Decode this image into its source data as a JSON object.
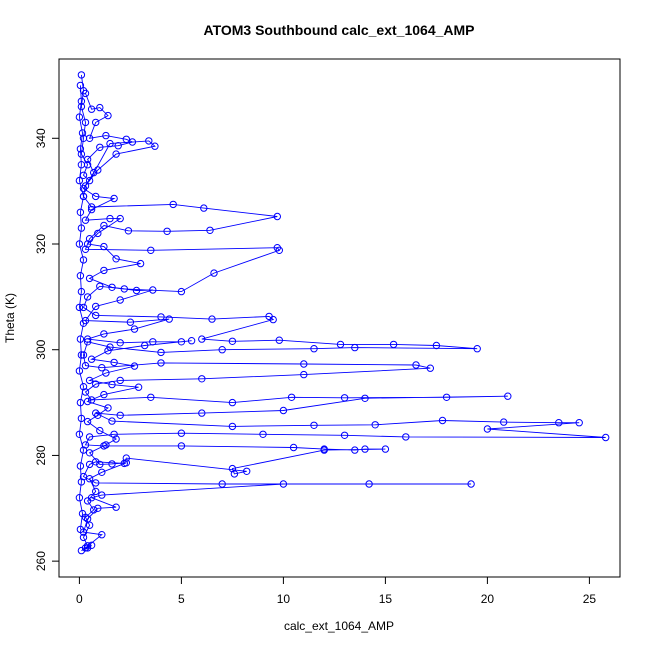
{
  "chart_data": {
    "type": "line",
    "title": "ATOM3 Southbound calc_ext_1064_AMP",
    "xlabel": "calc_ext_1064_AMP",
    "ylabel": "Theta (K)",
    "xlim": [
      -1,
      26.5
    ],
    "ylim": [
      257,
      355
    ],
    "x_ticks": [
      0,
      5,
      10,
      15,
      20,
      25
    ],
    "y_ticks": [
      260,
      280,
      300,
      320,
      340
    ],
    "x_tick_labels": [
      "0",
      "5",
      "10",
      "15",
      "20",
      "25"
    ],
    "y_tick_labels": [
      "260",
      "280",
      "300",
      "320",
      "340"
    ],
    "grid": false,
    "series_color": "#0000ff",
    "marker": "open-circle",
    "series": [
      {
        "points": [
          [
            0.1,
            352
          ],
          [
            0.2,
            349
          ],
          [
            0.1,
            346
          ],
          [
            0.3,
            343
          ],
          [
            0.2,
            340
          ],
          [
            0.1,
            337
          ],
          [
            0.4,
            335
          ],
          [
            0.2,
            333
          ],
          [
            0.5,
            332
          ],
          [
            1.5,
            339
          ],
          [
            3.4,
            339.5
          ],
          [
            3.7,
            338.5
          ],
          [
            1.8,
            337
          ],
          [
            0.9,
            334
          ],
          [
            0.3,
            331
          ],
          [
            0.2,
            329
          ],
          [
            0.6,
            327
          ],
          [
            4.6,
            327.5
          ],
          [
            6.1,
            326.8
          ],
          [
            9.7,
            325.2
          ],
          [
            6.4,
            322.6
          ],
          [
            4.3,
            322.4
          ],
          [
            2.4,
            322.5
          ],
          [
            1.2,
            323.5
          ],
          [
            0.5,
            321
          ],
          [
            0.3,
            319
          ],
          [
            3.5,
            318.8
          ],
          [
            9.7,
            319.3
          ],
          [
            9.8,
            318.8
          ],
          [
            6.6,
            314.5
          ],
          [
            5.0,
            311.0
          ],
          [
            2.2,
            311.5
          ],
          [
            1.0,
            312
          ],
          [
            0.4,
            310
          ],
          [
            0.2,
            308
          ],
          [
            0.8,
            306.5
          ],
          [
            4.0,
            306.2
          ],
          [
            6.5,
            305.8
          ],
          [
            9.3,
            306.3
          ],
          [
            9.5,
            305.7
          ],
          [
            6.0,
            302
          ],
          [
            7.5,
            301.6
          ],
          [
            9.8,
            301.8
          ],
          [
            12.8,
            301.0
          ],
          [
            15.4,
            301.0
          ],
          [
            17.5,
            300.8
          ],
          [
            19.5,
            300.2
          ],
          [
            13.5,
            300.4
          ],
          [
            11.5,
            300.2
          ],
          [
            7.0,
            300.0
          ],
          [
            4.0,
            299.5
          ],
          [
            1.5,
            300.5
          ],
          [
            0.4,
            301.5
          ],
          [
            0.2,
            299
          ],
          [
            0.3,
            297
          ],
          [
            1.1,
            296.6
          ],
          [
            4.0,
            297.5
          ],
          [
            11.0,
            297.3
          ],
          [
            16.5,
            297.1
          ],
          [
            17.2,
            296.5
          ],
          [
            11.0,
            295.3
          ],
          [
            6.0,
            294.5
          ],
          [
            2.0,
            294.2
          ],
          [
            0.8,
            293.5
          ],
          [
            0.3,
            292
          ],
          [
            0.6,
            290.5
          ],
          [
            3.5,
            291.0
          ],
          [
            7.5,
            290.0
          ],
          [
            10.4,
            291.0
          ],
          [
            13.0,
            290.9
          ],
          [
            18.0,
            291.0
          ],
          [
            21.0,
            291.2
          ],
          [
            14.0,
            290.8
          ],
          [
            10.0,
            288.5
          ],
          [
            6.0,
            288.0
          ],
          [
            2.0,
            287.6
          ],
          [
            0.8,
            288
          ],
          [
            1.6,
            286.5
          ],
          [
            7.5,
            285.5
          ],
          [
            11.5,
            285.7
          ],
          [
            14.5,
            285.8
          ],
          [
            17.8,
            286.6
          ],
          [
            20.8,
            286.3
          ],
          [
            23.5,
            286.2
          ],
          [
            24.5,
            286.2
          ],
          [
            20.0,
            285.0
          ],
          [
            25.8,
            283.4
          ],
          [
            16.0,
            283.5
          ],
          [
            13.0,
            283.8
          ],
          [
            9.0,
            284.0
          ],
          [
            5.0,
            284.2
          ],
          [
            1.7,
            284.0
          ],
          [
            0.5,
            283.5
          ],
          [
            0.3,
            282
          ],
          [
            1.2,
            281.8
          ],
          [
            5.0,
            281.8
          ],
          [
            10.5,
            281.5
          ],
          [
            12.0,
            281.2
          ],
          [
            13.5,
            281.0
          ],
          [
            14.0,
            281.2
          ],
          [
            15.0,
            281.2
          ],
          [
            12.0,
            281.0
          ],
          [
            7.5,
            277.5
          ],
          [
            7.6,
            276.5
          ],
          [
            8.2,
            277.0
          ],
          [
            2.3,
            279.5
          ],
          [
            2.2,
            278.5
          ],
          [
            0.8,
            278.8
          ],
          [
            0.5,
            278.3
          ],
          [
            0.2,
            276
          ],
          [
            0.8,
            274.8
          ],
          [
            7.0,
            274.6
          ],
          [
            14.2,
            274.6
          ],
          [
            19.2,
            274.6
          ],
          [
            10.0,
            274.6
          ],
          [
            1.1,
            272.5
          ],
          [
            0.6,
            272
          ],
          [
            1.8,
            270.2
          ],
          [
            0.9,
            270
          ],
          [
            0.4,
            268
          ],
          [
            0.2,
            265.5
          ],
          [
            1.1,
            265
          ],
          [
            0.3,
            262.5
          ],
          [
            0.6,
            263
          ],
          [
            0.4,
            262.5
          ],
          [
            0.1,
            262
          ]
        ]
      },
      {
        "points": [
          [
            0.3,
            348.5
          ],
          [
            0.6,
            345.5
          ],
          [
            1.0,
            345.8
          ],
          [
            1.4,
            344.3
          ],
          [
            0.8,
            343.0
          ],
          [
            0.5,
            340
          ],
          [
            1.3,
            340.5
          ],
          [
            2.3,
            339.8
          ],
          [
            2.6,
            339.3
          ],
          [
            1.9,
            338.6
          ],
          [
            1.0,
            338.3
          ],
          [
            0.4,
            336
          ],
          [
            0.7,
            333.5
          ],
          [
            0.2,
            330.5
          ],
          [
            0.8,
            329.0
          ],
          [
            1.7,
            328.6
          ],
          [
            0.6,
            326.5
          ],
          [
            0.3,
            324.5
          ],
          [
            1.5,
            324.8
          ],
          [
            2.0,
            324.8
          ],
          [
            0.9,
            322.0
          ],
          [
            0.4,
            320.0
          ],
          [
            1.2,
            319.5
          ],
          [
            1.8,
            317.2
          ],
          [
            3.0,
            316.3
          ],
          [
            1.2,
            315.0
          ],
          [
            0.5,
            313.5
          ],
          [
            1.6,
            311.8
          ],
          [
            2.8,
            311.2
          ],
          [
            3.6,
            311.3
          ],
          [
            2.0,
            309.4
          ],
          [
            0.8,
            308.2
          ],
          [
            0.3,
            305.5
          ],
          [
            2.5,
            305.2
          ],
          [
            4.4,
            305.8
          ],
          [
            2.7,
            303.9
          ],
          [
            1.2,
            303.0
          ],
          [
            0.4,
            302.0
          ],
          [
            2.0,
            301.3
          ],
          [
            3.6,
            301.5
          ],
          [
            5.0,
            301.5
          ],
          [
            5.5,
            301.7
          ],
          [
            3.2,
            300.8
          ],
          [
            1.4,
            299.8
          ],
          [
            0.6,
            298.2
          ],
          [
            1.7,
            297.6
          ],
          [
            2.7,
            296.9
          ],
          [
            1.3,
            295.6
          ],
          [
            0.5,
            294.2
          ],
          [
            1.6,
            293.4
          ],
          [
            2.9,
            292.9
          ],
          [
            1.2,
            291.5
          ],
          [
            0.4,
            290.2
          ],
          [
            1.4,
            289.0
          ],
          [
            0.9,
            287.6
          ],
          [
            0.4,
            286.4
          ],
          [
            1.0,
            284.7
          ],
          [
            1.8,
            283.1
          ],
          [
            1.3,
            282.0
          ],
          [
            0.5,
            280.5
          ],
          [
            1.0,
            278.3
          ],
          [
            1.6,
            278.4
          ],
          [
            2.3,
            278.6
          ],
          [
            1.1,
            276.8
          ],
          [
            0.5,
            275.6
          ],
          [
            0.8,
            273.2
          ],
          [
            0.4,
            271.4
          ],
          [
            0.7,
            269.7
          ],
          [
            0.3,
            268.3
          ],
          [
            0.5,
            266.8
          ],
          [
            0.2,
            264.5
          ],
          [
            0.4,
            262.9
          ]
        ]
      },
      {
        "points": [
          [
            0.05,
            350
          ],
          [
            0.1,
            347
          ],
          [
            0.0,
            344
          ],
          [
            0.15,
            341
          ],
          [
            0.05,
            338
          ],
          [
            0.1,
            335
          ],
          [
            0.0,
            332
          ],
          [
            0.2,
            329
          ],
          [
            0.05,
            326
          ],
          [
            0.1,
            323
          ],
          [
            0.0,
            320
          ],
          [
            0.2,
            317
          ],
          [
            0.05,
            314
          ],
          [
            0.1,
            311
          ],
          [
            0.0,
            308
          ],
          [
            0.2,
            305
          ],
          [
            0.05,
            302
          ],
          [
            0.1,
            299
          ],
          [
            0.0,
            296
          ],
          [
            0.2,
            293
          ],
          [
            0.05,
            290
          ],
          [
            0.1,
            287
          ],
          [
            0.0,
            284
          ],
          [
            0.2,
            281
          ],
          [
            0.05,
            278
          ],
          [
            0.1,
            275
          ],
          [
            0.0,
            272
          ],
          [
            0.15,
            269
          ],
          [
            0.05,
            266
          ]
        ]
      }
    ]
  }
}
